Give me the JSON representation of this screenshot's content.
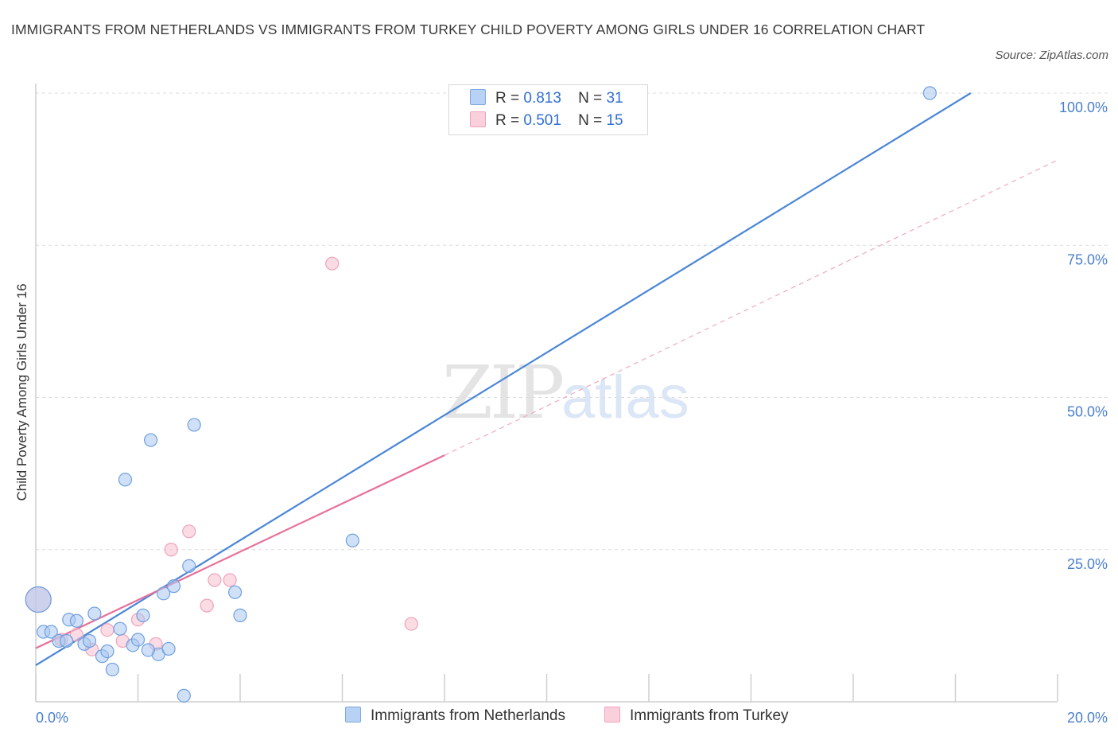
{
  "title": "IMMIGRANTS FROM NETHERLANDS VS IMMIGRANTS FROM TURKEY CHILD POVERTY AMONG GIRLS UNDER 16 CORRELATION CHART",
  "source": "Source: ZipAtlas.com",
  "watermark": {
    "zip": "ZIP",
    "atlas": "atlas"
  },
  "legend": {
    "rows": [
      {
        "r_label": "R =",
        "r_value": "0.813",
        "n_label": "N =",
        "n_value": "31",
        "color": "#a9c8f0"
      },
      {
        "r_label": "R =",
        "r_value": "0.501",
        "n_label": "N =",
        "n_value": "15",
        "color": "#f7bfd0"
      }
    ]
  },
  "bottom_legend": [
    {
      "label": "Immigrants from Netherlands",
      "color": "#a9c8f0"
    },
    {
      "label": "Immigrants from Turkey",
      "color": "#f7bfd0"
    }
  ],
  "chart_data": {
    "type": "scatter",
    "title": "IMMIGRANTS FROM NETHERLANDS VS IMMIGRANTS FROM TURKEY CHILD POVERTY AMONG GIRLS UNDER 16 CORRELATION CHART",
    "xlabel": "",
    "ylabel": "Child Poverty Among Girls Under 16",
    "xlim": [
      0,
      20
    ],
    "ylim": [
      0,
      100
    ],
    "x_tick_labels": [
      "0.0%",
      "20.0%"
    ],
    "y_ticks": [
      25,
      50,
      75,
      100
    ],
    "y_tick_labels": [
      "25.0%",
      "50.0%",
      "75.0%",
      "100.0%"
    ],
    "grid": true,
    "series": [
      {
        "name": "Immigrants from Netherlands",
        "color": "#4a86d8",
        "fill": "#a9c8f0",
        "points": [
          [
            0.15,
            11.5
          ],
          [
            0.3,
            11.5
          ],
          [
            0.45,
            10
          ],
          [
            0.6,
            10
          ],
          [
            0.65,
            13.5
          ],
          [
            0.8,
            13.3
          ],
          [
            0.95,
            9.5
          ],
          [
            1.05,
            10
          ],
          [
            1.15,
            14.5
          ],
          [
            1.3,
            7.5
          ],
          [
            1.4,
            8.3
          ],
          [
            1.5,
            5.3
          ],
          [
            1.65,
            12
          ],
          [
            1.75,
            36.5
          ],
          [
            1.9,
            9.3
          ],
          [
            2.0,
            10.2
          ],
          [
            2.1,
            14.2
          ],
          [
            2.25,
            43
          ],
          [
            2.4,
            7.8
          ],
          [
            2.5,
            17.8
          ],
          [
            2.6,
            8.7
          ],
          [
            2.7,
            19
          ],
          [
            2.9,
            1
          ],
          [
            3.0,
            22.3
          ],
          [
            3.1,
            45.5
          ],
          [
            3.9,
            18
          ],
          [
            4.0,
            14.2
          ],
          [
            6.2,
            26.5
          ],
          [
            17.5,
            100
          ],
          [
            0.05,
            16.8
          ],
          [
            2.2,
            8.5
          ]
        ],
        "trendline": {
          "x": [
            0,
            18.3
          ],
          "y": [
            6,
            100
          ]
        }
      },
      {
        "name": "Immigrants from Turkey",
        "color": "#e8709a",
        "fill": "#f7bfd0",
        "points": [
          [
            0.5,
            10.2
          ],
          [
            0.8,
            11
          ],
          [
            1.1,
            8.6
          ],
          [
            1.4,
            11.8
          ],
          [
            1.7,
            10
          ],
          [
            2.0,
            13.5
          ],
          [
            2.35,
            9.5
          ],
          [
            2.65,
            25
          ],
          [
            3.0,
            28
          ],
          [
            3.35,
            15.8
          ],
          [
            3.5,
            20
          ],
          [
            3.8,
            20
          ],
          [
            5.8,
            72
          ],
          [
            7.35,
            12.8
          ],
          [
            0.05,
            16.8
          ]
        ],
        "trendline": {
          "x": [
            0,
            8
          ],
          "y": [
            8.8,
            40.5
          ]
        },
        "trendline_extension": {
          "x": [
            8,
            20
          ],
          "y": [
            40.5,
            89
          ]
        }
      }
    ]
  }
}
